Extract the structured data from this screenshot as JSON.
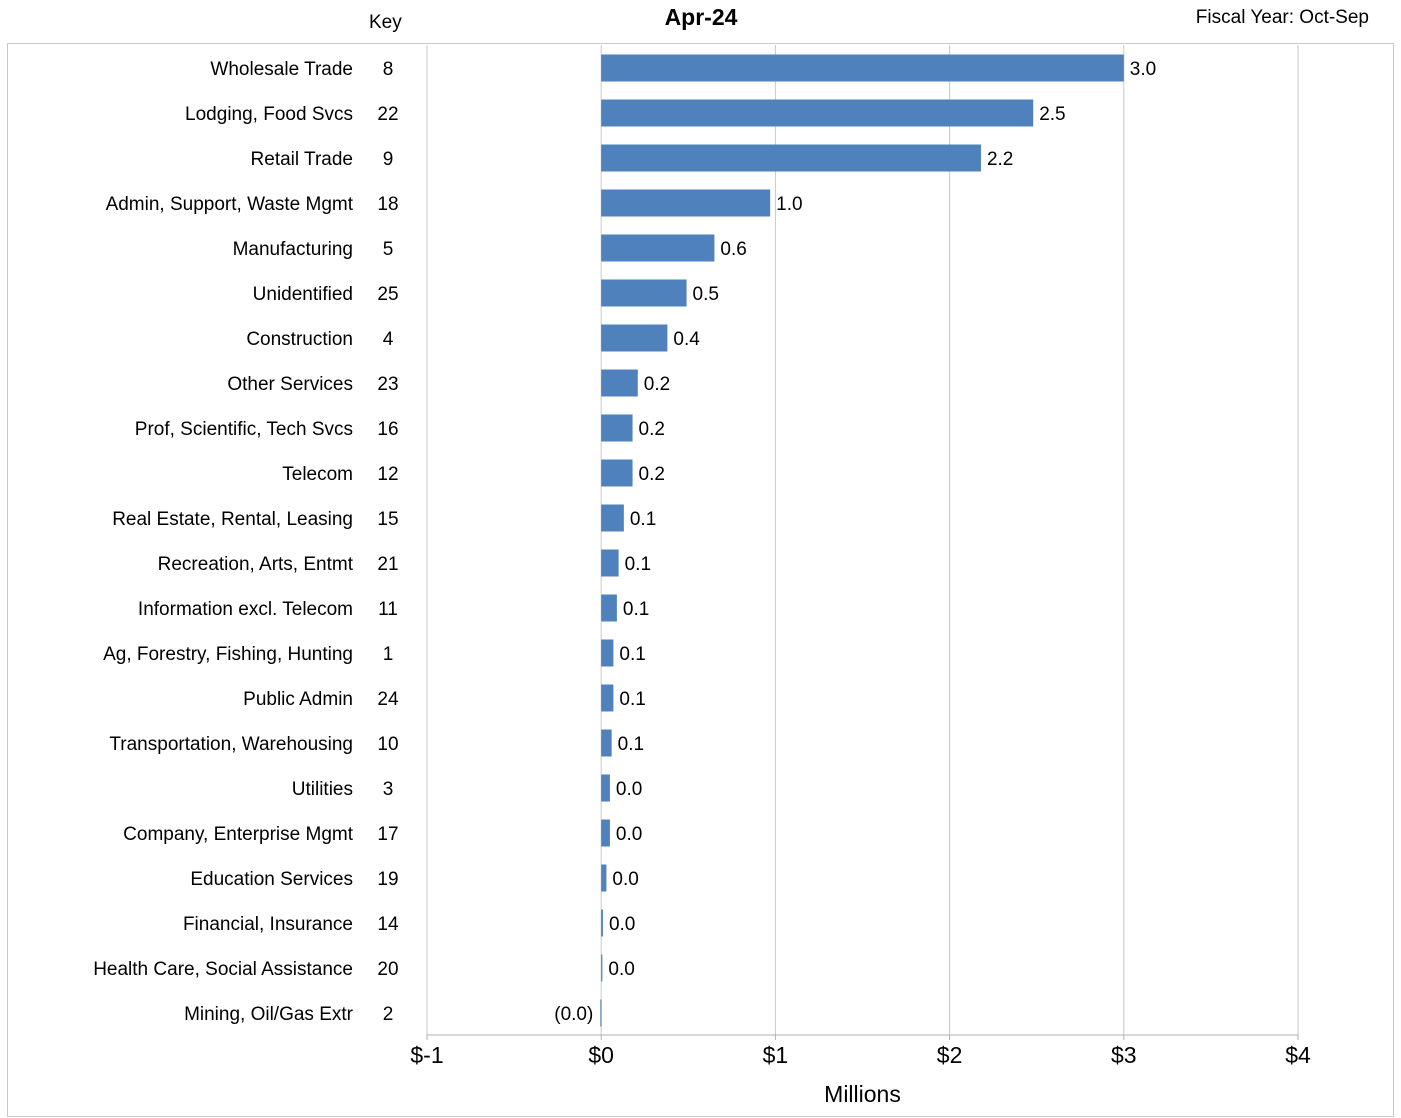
{
  "header": {
    "key_label": "Key",
    "title": "Apr-24",
    "fiscal_year": "Fiscal Year: Oct-Sep"
  },
  "colors": {
    "bar": "#4f81bd",
    "grid": "#c9c9c9",
    "axis": "#b0b0b0"
  },
  "chart_data": {
    "type": "bar",
    "orientation": "horizontal",
    "title": "Apr-24",
    "xlabel": "Millions",
    "ylabel": "",
    "xlim": [
      -1,
      4
    ],
    "x_ticks": [
      -1,
      0,
      1,
      2,
      3,
      4
    ],
    "x_tick_labels": [
      "$-1",
      "$0",
      "$1",
      "$2",
      "$3",
      "$4"
    ],
    "grid": true,
    "categories": [
      "Wholesale Trade",
      "Lodging, Food Svcs",
      "Retail Trade",
      "Admin, Support, Waste Mgmt",
      "Manufacturing",
      "Unidentified",
      "Construction",
      "Other Services",
      "Prof, Scientific, Tech Svcs",
      "Telecom",
      "Real Estate, Rental, Leasing",
      "Recreation, Arts, Entmt",
      "Information excl. Telecom",
      "Ag, Forestry, Fishing, Hunting",
      "Public Admin",
      "Transportation, Warehousing",
      "Utilities",
      "Company, Enterprise Mgmt",
      "Education Services",
      "Financial, Insurance",
      "Health Care, Social Assistance",
      "Mining, Oil/Gas Extr"
    ],
    "keys": [
      "8",
      "22",
      "9",
      "18",
      "5",
      "25",
      "4",
      "23",
      "16",
      "12",
      "15",
      "21",
      "11",
      "1",
      "24",
      "10",
      "3",
      "17",
      "19",
      "14",
      "20",
      "2"
    ],
    "values": [
      3.0,
      2.48,
      2.18,
      0.97,
      0.65,
      0.49,
      0.38,
      0.21,
      0.18,
      0.18,
      0.13,
      0.1,
      0.09,
      0.07,
      0.07,
      0.06,
      0.05,
      0.05,
      0.03,
      0.01,
      0.005,
      -0.005
    ],
    "data_labels": [
      "3.0",
      "2.5",
      "2.2",
      "1.0",
      "0.6",
      "0.5",
      "0.4",
      "0.2",
      "0.2",
      "0.2",
      "0.1",
      "0.1",
      "0.1",
      "0.1",
      "0.1",
      "0.1",
      "0.0",
      "0.0",
      "0.0",
      "0.0",
      "0.0",
      "(0.0)"
    ]
  }
}
